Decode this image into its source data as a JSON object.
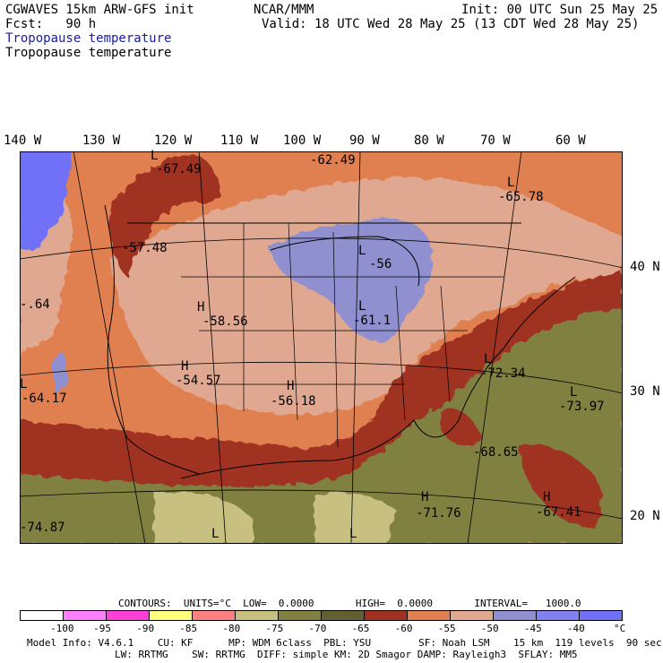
{
  "header": {
    "model": "CGWAVES 15km ARW-GFS init",
    "fcst": "Fcst:   90 h",
    "org": "NCAR/MMM",
    "init": "Init: 00 UTC Sun 25 May 25",
    "valid": "Valid: 18 UTC Wed 28 May 25 (13 CDT Wed 28 May 25)",
    "field1": "Tropopause temperature",
    "field2": "Tropopause temperature"
  },
  "map": {
    "longitudes": [
      "140 W",
      "130 W",
      "120 W",
      "110 W",
      "100 W",
      "90 W",
      "80 W",
      "70 W",
      "60 W"
    ],
    "latitudes": [
      "40 N",
      "30 N",
      "20 N"
    ],
    "labels": [
      {
        "mark": "L",
        "value": "-67.49"
      },
      {
        "mark": "",
        "value": "-62.49"
      },
      {
        "mark": "L",
        "value": "-65.78"
      },
      {
        "mark": "",
        "value": "-57.48"
      },
      {
        "mark": "L",
        "value": "-56"
      },
      {
        "mark": "L",
        "value": "-61.1"
      },
      {
        "mark": "H",
        "value": "-58.56"
      },
      {
        "mark": "",
        "value": "-.64"
      },
      {
        "mark": "H",
        "value": "-54.57"
      },
      {
        "mark": "H",
        "value": "-56.18"
      },
      {
        "mark": "L",
        "value": "-64.17"
      },
      {
        "mark": "L",
        "value": "-72.34"
      },
      {
        "mark": "L",
        "value": "-73.97"
      },
      {
        "mark": "",
        "value": "-68.65"
      },
      {
        "mark": "H",
        "value": "-71.76"
      },
      {
        "mark": "H",
        "value": "-67.41"
      },
      {
        "mark": "",
        "value": "-74.87"
      },
      {
        "mark": "L",
        "value": ""
      },
      {
        "mark": "L",
        "value": ""
      }
    ]
  },
  "contours": {
    "line": "CONTOURS:  UNITS=°C  LOW=  0.0000       HIGH=  0.0000       INTERVAL=   1000.0"
  },
  "colorbar": {
    "colors": [
      "#ffffff",
      "#ff80ff",
      "#ff40d8",
      "#ffff80",
      "#ff8080",
      "#c8c080",
      "#808040",
      "#606030",
      "#a03020",
      "#e08050",
      "#e0a890",
      "#9090d0",
      "#8080f0",
      "#7070f8"
    ],
    "labels": [
      "-100",
      "-95",
      "-90",
      "-85",
      "-80",
      "-75",
      "-70",
      "-65",
      "-60",
      "-55",
      "-50",
      "-45",
      "-40",
      "°C"
    ]
  },
  "footer": {
    "line1": "Model Info: V4.6.1    CU: KF      MP: WDM 6class  PBL: YSU        SF: Noah LSM    15 km  119 levels  90 sec",
    "line2": "LW: RRTMG    SW: RRTMG  DIFF: simple KM: 2D Smagor DAMP: Rayleigh3  SFLAY: MM5"
  }
}
